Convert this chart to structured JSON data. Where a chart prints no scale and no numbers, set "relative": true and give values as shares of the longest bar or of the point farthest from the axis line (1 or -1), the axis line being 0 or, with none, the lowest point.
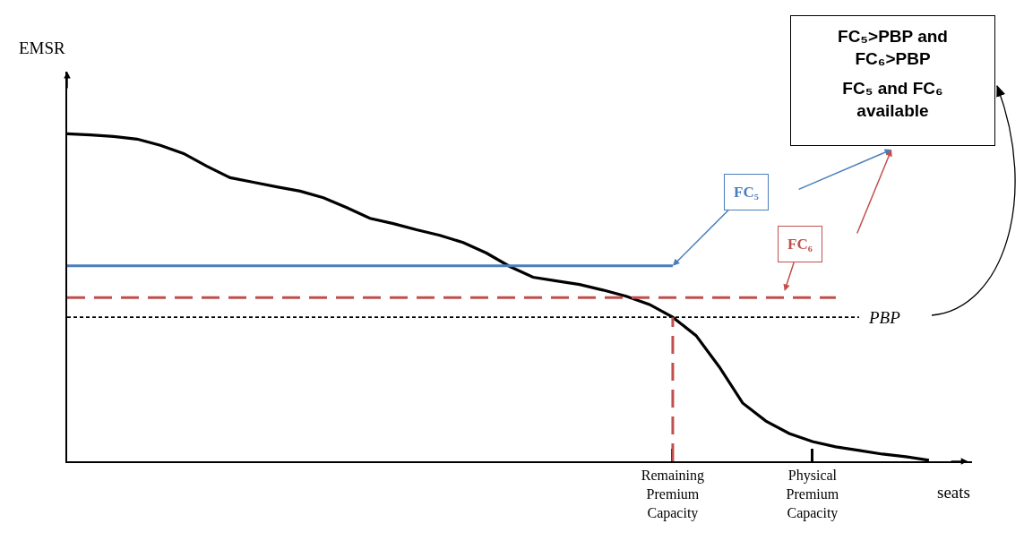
{
  "chart_data": {
    "type": "line",
    "relative": true,
    "ylabel": "EMSR",
    "xlabel": "seats",
    "categories": [
      null,
      null,
      null,
      null,
      null,
      null,
      null,
      null,
      null,
      null,
      null,
      null,
      null,
      null,
      null,
      null,
      null,
      null,
      null,
      null,
      null,
      null,
      null,
      null,
      null,
      null,
      "Remaining Premium Capacity",
      null,
      null,
      null,
      null,
      null,
      "Physical Premium Capacity",
      null,
      null,
      null,
      null,
      null
    ],
    "series": [
      {
        "color": "#000000",
        "line_style": "solid",
        "values": [
          1.0,
          0.997,
          0.992,
          0.984,
          0.965,
          0.94,
          0.901,
          0.866,
          0.852,
          0.838,
          0.825,
          0.805,
          0.775,
          0.742,
          0.726,
          0.707,
          0.69,
          0.668,
          0.636,
          0.595,
          0.562,
          0.551,
          0.54,
          0.523,
          0.504,
          0.479,
          0.44,
          0.384,
          0.288,
          0.178,
          0.123,
          0.085,
          0.06,
          0.044,
          0.033,
          0.022,
          0.014,
          0.003
        ]
      },
      {
        "name": "FC₅",
        "color": "#4a7ebb",
        "line_style": "solid",
        "values": [
          0.597,
          0.597,
          0.597,
          0.597,
          0.597,
          0.597,
          0.597,
          0.597,
          0.597,
          0.597,
          0.597,
          0.597,
          0.597,
          0.597,
          0.597,
          0.597,
          0.597,
          0.597,
          0.597,
          0.597,
          0.597,
          0.597,
          0.597,
          0.597,
          0.597,
          0.597,
          0.597,
          null,
          null,
          null,
          null,
          null,
          null,
          null,
          null,
          null,
          null,
          null
        ]
      },
      {
        "name": "FC₆",
        "color": "#c0504d",
        "line_style": "dashed",
        "values": [
          0.5,
          0.5,
          0.5,
          0.5,
          0.5,
          0.5,
          0.5,
          0.5,
          0.5,
          0.5,
          0.5,
          0.5,
          0.5,
          0.5,
          0.5,
          0.5,
          0.5,
          0.5,
          0.5,
          0.5,
          0.5,
          0.5,
          0.5,
          0.5,
          0.5,
          0.5,
          0.5,
          0.5,
          0.5,
          0.5,
          0.5,
          0.5,
          0.5,
          0.5,
          null,
          null,
          null,
          null
        ]
      },
      {
        "name": "PBP",
        "color": "#000000",
        "line_style": "dotted",
        "values": [
          0.44,
          0.44,
          0.44,
          0.44,
          0.44,
          0.44,
          0.44,
          0.44,
          0.44,
          0.44,
          0.44,
          0.44,
          0.44,
          0.44,
          0.44,
          0.44,
          0.44,
          0.44,
          0.44,
          0.44,
          0.44,
          0.44,
          0.44,
          0.44,
          0.44,
          0.44,
          0.44,
          0.44,
          0.44,
          0.44,
          0.44,
          0.44,
          0.44,
          0.44,
          0.44,
          null,
          null,
          null
        ]
      }
    ],
    "ref_lines": [
      {
        "axis": "x",
        "value": "Remaining Premium Capacity",
        "color": "#c0504d",
        "line_style": "dashed"
      }
    ],
    "annotations": [
      "FC₅>PBP and FC₆>PBP",
      "FC₅ and FC₆ available"
    ],
    "grid": false,
    "legend": false,
    "marker": "none"
  }
}
